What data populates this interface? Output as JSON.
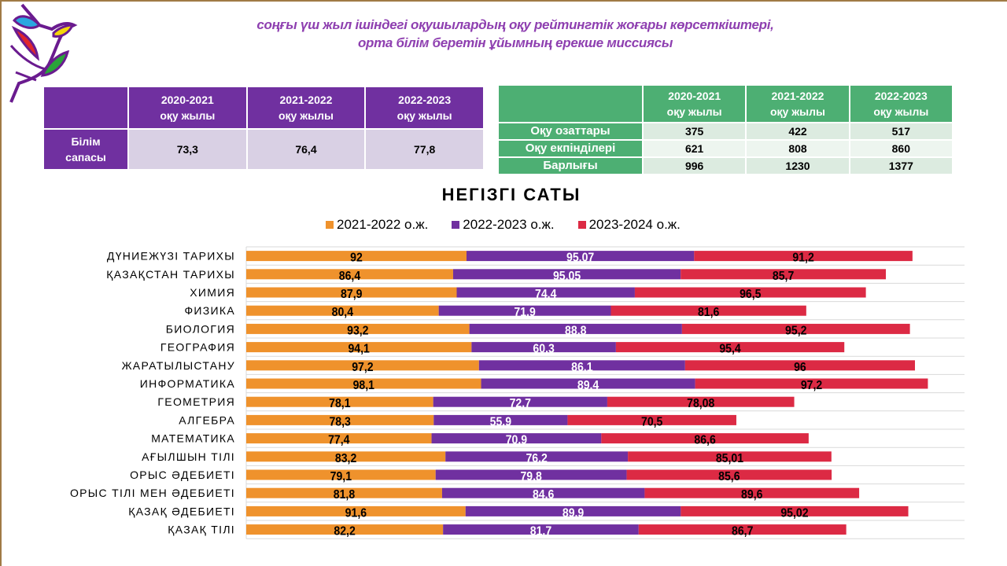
{
  "header": {
    "title_line1": "соңғы үш жыл ішіндегі оқушылардың оқу рейтингтік жоғары көрсеткіштері,",
    "title_line2": "орта білім беретін ұйымның ерекше миссиясы",
    "logo_icon": "bird-logo-icon"
  },
  "quality_table": {
    "columns": [
      "2020-2021\nоқу жылы",
      "2021-2022\nоқу жылы",
      "2022-2023\nоқу жылы"
    ],
    "column_years": [
      "2020-2021",
      "2021-2022",
      "2022-2023"
    ],
    "column_suffix": "оқу жылы",
    "row_label_line1": "Білім",
    "row_label_line2": "сапасы",
    "values": [
      "73,3",
      "76,4",
      "77,8"
    ],
    "header_color": "#7030a0",
    "cell_color": "#d9d0e4"
  },
  "students_table": {
    "column_years": [
      "2020-2021",
      "2021-2022",
      "2022-2023"
    ],
    "column_suffix": "оқу жылы",
    "rows": [
      {
        "label": "Оқу озаттары",
        "values": [
          "375",
          "422",
          "517"
        ]
      },
      {
        "label": "Оқу екпінділері",
        "values": [
          "621",
          "808",
          "860"
        ]
      },
      {
        "label": "Барлығы",
        "values": [
          "996",
          "1230",
          "1377"
        ]
      }
    ],
    "header_color": "#4daf73"
  },
  "chart_data": {
    "type": "bar",
    "orientation": "horizontal",
    "stacked": true,
    "title": "НЕГІЗГІ САТЫ",
    "xlabel": "",
    "ylabel": "",
    "xlim": [
      0,
      300
    ],
    "grid": true,
    "legend_position": "top",
    "categories": [
      "ДҮНИЕЖҮЗІ ТАРИХЫ",
      "ҚАЗАҚСТАН ТАРИХЫ",
      "ХИМИЯ",
      "ФИЗИКА",
      "БИОЛОГИЯ",
      "ГЕОГРАФИЯ",
      "ЖАРАТЫЛЫСТАНУ",
      "ИНФОРМАТИКА",
      "ГЕОМЕТРИЯ",
      "АЛГЕБРА",
      "МАТЕМАТИКА",
      "АҒЫЛШЫН ТІЛІ",
      "ОРЫС ӘДЕБИЕТІ",
      "ОРЫС ТІЛІ МЕН ӘДЕБИЕТІ",
      "ҚАЗАҚ ӘДЕБИЕТІ",
      "ҚАЗАҚ ТІЛІ"
    ],
    "series": [
      {
        "name": "2021-2022 о.ж.",
        "color": "#ef922c",
        "label_color": "#000000",
        "values": [
          92,
          86.4,
          87.9,
          80.4,
          93.2,
          94.1,
          97.2,
          98.1,
          78.1,
          78.3,
          77.4,
          83.2,
          79.1,
          81.8,
          91.6,
          82.2
        ],
        "labels": [
          "92",
          "86,4",
          "87,9",
          "80,4",
          "93,2",
          "94,1",
          "97,2",
          "98,1",
          "78,1",
          "78,3",
          "77,4",
          "83,2",
          "79,1",
          "81,8",
          "91,6",
          "82,2"
        ]
      },
      {
        "name": "2022-2023 о.ж.",
        "color": "#7030a0",
        "label_color": "#ffffff",
        "values": [
          95.07,
          95.05,
          74.4,
          71.9,
          88.8,
          60.3,
          86.1,
          89.4,
          72.7,
          55.9,
          70.9,
          76.2,
          79.8,
          84.6,
          89.9,
          81.7
        ],
        "labels": [
          "95.07",
          "95.05",
          "74.4",
          "71.9",
          "88.8",
          "60.3",
          "86.1",
          "89.4",
          "72.7",
          "55.9",
          "70.9",
          "76.2",
          "79.8",
          "84.6",
          "89.9",
          "81.7"
        ]
      },
      {
        "name": "2023-2024 о.ж.",
        "color": "#dc2a44",
        "label_color": "#000000",
        "values": [
          91.2,
          85.7,
          96.5,
          81.6,
          95.2,
          95.4,
          96,
          97.2,
          78.08,
          70.5,
          86.6,
          85.01,
          85.6,
          89.6,
          95.02,
          86.7
        ],
        "labels": [
          "91,2",
          "85,7",
          "96,5",
          "81,6",
          "95,2",
          "95,4",
          "96",
          "97,2",
          "78,08",
          "70,5",
          "86,6",
          "85,01",
          "85,6",
          "89,6",
          "95,02",
          "86,7"
        ]
      }
    ]
  }
}
